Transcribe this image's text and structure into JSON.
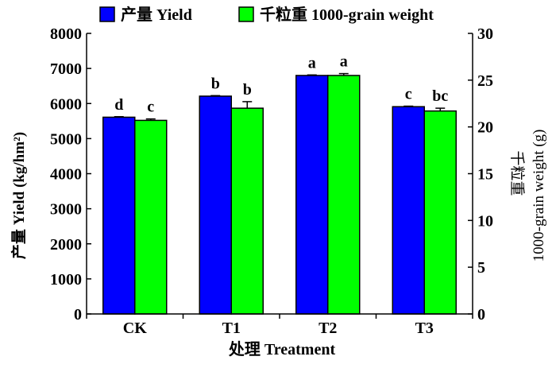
{
  "chart_data": {
    "type": "bar",
    "categories": [
      "CK",
      "T1",
      "T2",
      "T3"
    ],
    "series": [
      {
        "name": "产量 Yield",
        "axis": "left",
        "color": "#0000ff",
        "values": [
          5610,
          6210,
          6800,
          5910
        ],
        "errors": [
          15,
          15,
          15,
          15
        ],
        "letters": [
          "d",
          "b",
          "a",
          "c"
        ]
      },
      {
        "name": "千粒重 1000-grain weight",
        "axis": "right",
        "color": "#00ff00",
        "values": [
          20.7,
          22.0,
          25.5,
          21.7
        ],
        "errors": [
          0.15,
          0.7,
          0.2,
          0.3
        ],
        "letters": [
          "c",
          "b",
          "a",
          "bc"
        ]
      }
    ],
    "xlabel": "处理 Treatment",
    "ylabel_left": "产量 Yield (kg/hm²)",
    "ylabel_right_cn": "千粒重",
    "ylabel_right_en": "1000-grain weight (g)",
    "ylim_left": [
      0,
      8000
    ],
    "yticks_left": [
      0,
      1000,
      2000,
      3000,
      4000,
      5000,
      6000,
      7000,
      8000
    ],
    "ylim_right": [
      0,
      30
    ],
    "yticks_right": [
      0,
      5,
      10,
      15,
      20,
      25,
      30
    ],
    "grid": false,
    "legend_position": "top"
  }
}
